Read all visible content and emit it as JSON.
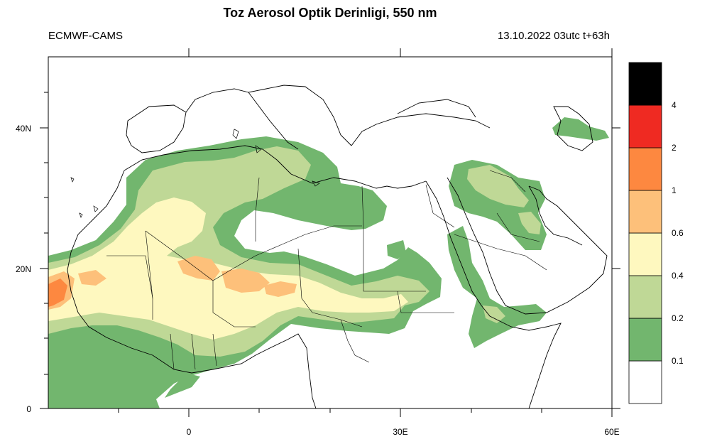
{
  "header": {
    "title": "Toz Aerosol Optik Derinligi, 550 nm",
    "left_label": "ECMWF-CAMS",
    "right_label": "13.10.2022 03utc t+63h"
  },
  "map": {
    "region": "North Africa, Middle East and Mediterranean",
    "lon_range": [
      -20,
      60
    ],
    "lat_range": [
      0,
      50
    ],
    "x_ticks": [
      {
        "lon": 0,
        "label": "0"
      },
      {
        "lon": 30,
        "label": "30E"
      },
      {
        "lon": 60,
        "label": "60E"
      }
    ],
    "y_ticks": [
      {
        "lat": 0,
        "label": "0"
      },
      {
        "lat": 20,
        "label": "20N"
      },
      {
        "lat": 40,
        "label": "40N"
      }
    ]
  },
  "colorbar": {
    "levels": [
      {
        "label": "0.1",
        "color": "#ffffff"
      },
      {
        "label": "0.2",
        "color": "#72b66e"
      },
      {
        "label": "0.4",
        "color": "#bfd896"
      },
      {
        "label": "0.6",
        "color": "#fef8bf"
      },
      {
        "label": "1",
        "color": "#fdc07a"
      },
      {
        "label": "2",
        "color": "#fd8840"
      },
      {
        "label": "4",
        "color": "#ef2a22"
      },
      {
        "label": "",
        "color": "#000000"
      }
    ]
  }
}
